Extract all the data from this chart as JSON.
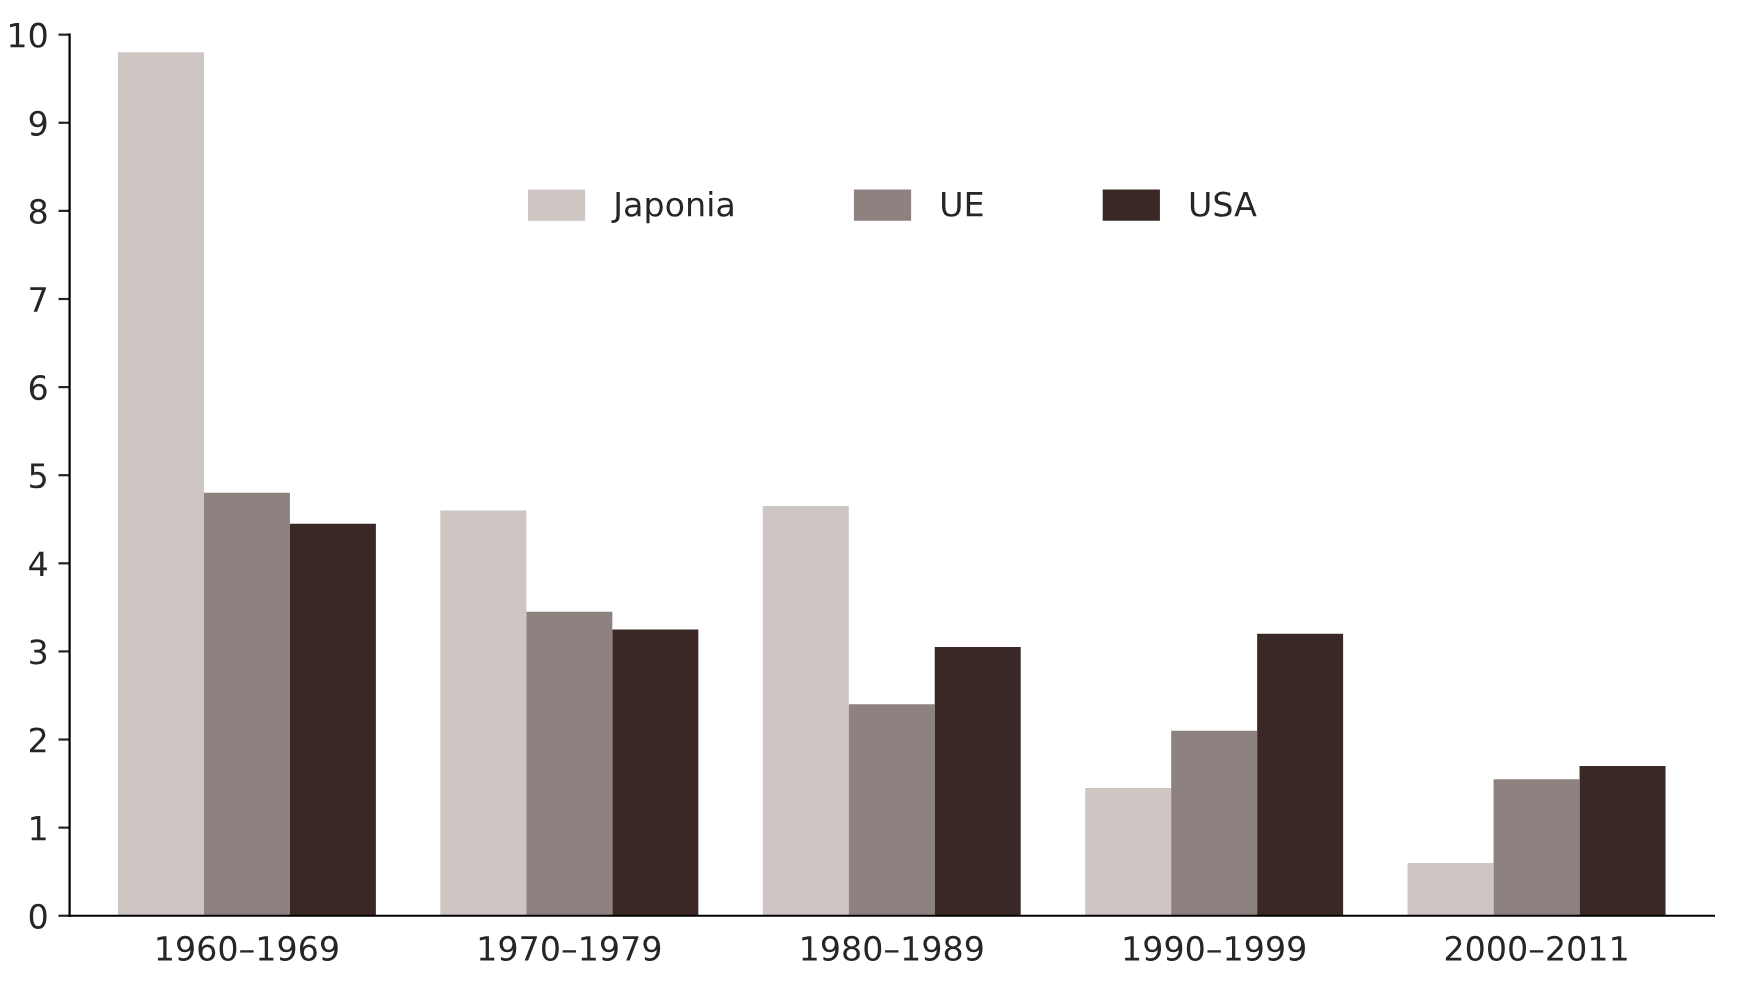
{
  "chart_data": {
    "type": "bar",
    "categories": [
      "1960–1969",
      "1970–1979",
      "1980–1989",
      "1990–1999",
      "2000–2011"
    ],
    "series": [
      {
        "name": "Japonia",
        "color": "#cdc6c2",
        "values": [
          9.8,
          4.6,
          4.65,
          1.45,
          0.6
        ]
      },
      {
        "name": "UE",
        "color": "#8e8280",
        "values": [
          4.8,
          3.45,
          2.4,
          2.1,
          1.55
        ]
      },
      {
        "name": "USA",
        "color": "#3a2826",
        "values": [
          4.45,
          3.25,
          3.05,
          3.2,
          1.7
        ]
      }
    ],
    "ylim": [
      0,
      10
    ],
    "yticks": [
      0,
      1,
      2,
      3,
      4,
      5,
      6,
      7,
      8,
      9,
      10
    ],
    "grid": false,
    "legend": "top"
  }
}
